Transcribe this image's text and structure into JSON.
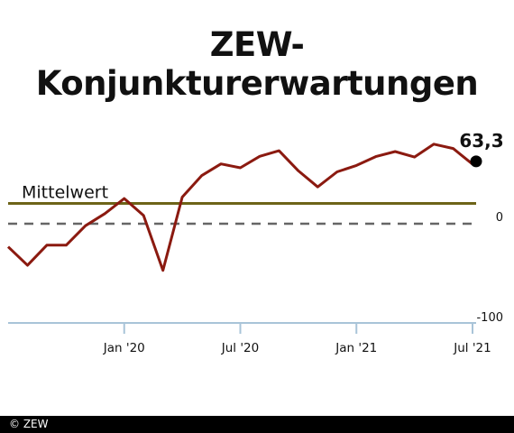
{
  "title": "ZEW-Konjunkturerwartungen",
  "footer": {
    "copyright": "© ZEW"
  },
  "colors": {
    "line": "#8b1a10",
    "mean_line": "#6d6418",
    "zero_line": "#666666",
    "axis": "#a9c4d8",
    "text": "#111111",
    "endpoint": "#000000"
  },
  "chart_data": {
    "type": "line",
    "title": "ZEW-Konjunkturerwartungen",
    "x": [
      "2019-07",
      "2019-08",
      "2019-09",
      "2019-10",
      "2019-11",
      "2019-12",
      "2020-01",
      "2020-02",
      "2020-03",
      "2020-04",
      "2020-05",
      "2020-06",
      "2020-07",
      "2020-08",
      "2020-09",
      "2020-10",
      "2020-11",
      "2020-12",
      "2021-01",
      "2021-02",
      "2021-03",
      "2021-04",
      "2021-05",
      "2021-06",
      "2021-07"
    ],
    "series": [
      {
        "values": [
          -24.5,
          -44.1,
          -22.8,
          -22.8,
          -2.1,
          10.7,
          26.7,
          8.7,
          -49.5,
          28.2,
          51.0,
          63.4,
          59.3,
          71.5,
          77.4,
          56.1,
          39.0,
          55.0,
          61.8,
          71.2,
          76.6,
          70.7,
          84.4,
          79.8,
          63.3
        ]
      }
    ],
    "xtick_labels": [
      "Jan '20",
      "Jul '20",
      "Jan '21",
      "Jul '21"
    ],
    "xtick_values": [
      "2020-01",
      "2020-07",
      "2021-01",
      "2021-07"
    ],
    "ytick_labels": [
      "0",
      "-100"
    ],
    "ytick_values": [
      0,
      -100
    ],
    "mean": {
      "label": "Mittelwert",
      "value": 21.5
    },
    "end_label": "63,3",
    "ylim": [
      -100,
      100
    ],
    "grid": false
  }
}
